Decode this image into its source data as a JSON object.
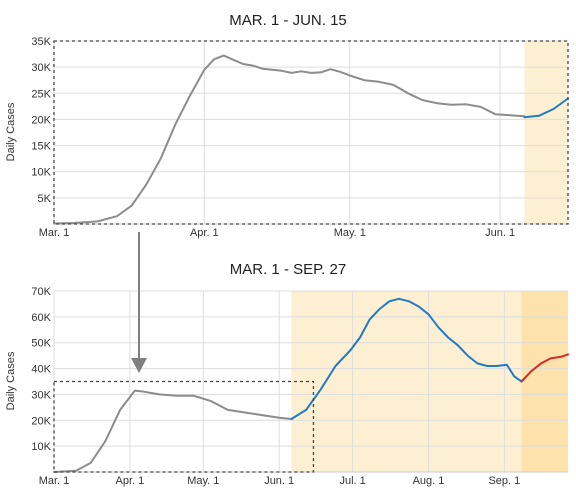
{
  "chart_data": [
    {
      "type": "line",
      "title": "MAR. 1 - JUN. 15",
      "ylabel": "Daily Cases",
      "ylim": [
        0,
        35000
      ],
      "yticks": [
        5000,
        10000,
        15000,
        20000,
        25000,
        30000,
        35000
      ],
      "ytick_labels": [
        "5K",
        "10K",
        "15K",
        "20K",
        "25K",
        "30K",
        "35K"
      ],
      "xlim": [
        "2020-03-01",
        "2020-06-15"
      ],
      "xticks": [
        "2020-03-01",
        "2020-04-01",
        "2020-05-01",
        "2020-06-01"
      ],
      "xtick_labels": [
        "Mar. 1",
        "Apr. 1",
        "May. 1",
        "Jun. 1"
      ],
      "grid": true,
      "highlight_band": {
        "from": "2020-06-06",
        "to": "2020-06-15",
        "color": "#fdf0d2"
      },
      "series": [
        {
          "color": "#8c8c8c",
          "x": [
            "2020-03-01",
            "2020-03-05",
            "2020-03-10",
            "2020-03-14",
            "2020-03-17",
            "2020-03-20",
            "2020-03-23",
            "2020-03-26",
            "2020-03-29",
            "2020-04-01",
            "2020-04-03",
            "2020-04-05",
            "2020-04-07",
            "2020-04-09",
            "2020-04-11",
            "2020-04-13",
            "2020-04-15",
            "2020-04-17",
            "2020-04-19",
            "2020-04-21",
            "2020-04-23",
            "2020-04-25",
            "2020-04-27",
            "2020-04-29",
            "2020-05-01",
            "2020-05-04",
            "2020-05-07",
            "2020-05-10",
            "2020-05-13",
            "2020-05-16",
            "2020-05-19",
            "2020-05-22",
            "2020-05-25",
            "2020-05-28",
            "2020-05-31",
            "2020-06-03",
            "2020-06-06"
          ],
          "y": [
            100,
            200,
            500,
            1500,
            3500,
            7500,
            12500,
            19000,
            24500,
            29500,
            31500,
            32200,
            31400,
            30600,
            30300,
            29700,
            29500,
            29300,
            28900,
            29200,
            28900,
            29000,
            29600,
            29100,
            28400,
            27500,
            27200,
            26600,
            25000,
            23700,
            23100,
            22800,
            22900,
            22400,
            21000,
            20800,
            20600
          ]
        },
        {
          "color": "#1f7bc4",
          "x": [
            "2020-06-06",
            "2020-06-09",
            "2020-06-12",
            "2020-06-15"
          ],
          "y": [
            20400,
            20700,
            22000,
            24000
          ]
        }
      ]
    },
    {
      "type": "line",
      "title": "MAR. 1 - SEP. 27",
      "ylabel": "Daily Cases",
      "ylim": [
        0,
        70000
      ],
      "yticks": [
        10000,
        20000,
        30000,
        40000,
        50000,
        60000,
        70000
      ],
      "ytick_labels": [
        "10K",
        "20K",
        "30K",
        "40K",
        "50K",
        "60K",
        "70K"
      ],
      "xlim": [
        "2020-03-01",
        "2020-09-27"
      ],
      "xticks": [
        "2020-03-01",
        "2020-04-01",
        "2020-05-01",
        "2020-06-01",
        "2020-07-01",
        "2020-08-01",
        "2020-09-01"
      ],
      "xtick_labels": [
        "Mar. 1",
        "Apr. 1",
        "May. 1",
        "Jun. 1",
        "Jul. 1",
        "Aug. 1",
        "Sep. 1"
      ],
      "grid": true,
      "highlight_bands": [
        {
          "from": "2020-06-06",
          "to": "2020-09-08",
          "color": "#fdf0d2"
        },
        {
          "from": "2020-09-08",
          "to": "2020-09-27",
          "color": "#fde3ab"
        }
      ],
      "inset_box": {
        "from": "2020-03-01",
        "to": "2020-06-15",
        "ymax": 35000
      },
      "series": [
        {
          "color": "#8c8c8c",
          "x": [
            "2020-03-01",
            "2020-03-10",
            "2020-03-16",
            "2020-03-22",
            "2020-03-28",
            "2020-04-03",
            "2020-04-07",
            "2020-04-13",
            "2020-04-20",
            "2020-04-27",
            "2020-05-04",
            "2020-05-11",
            "2020-05-18",
            "2020-05-25",
            "2020-06-01",
            "2020-06-06"
          ],
          "y": [
            0,
            500,
            3500,
            12000,
            24000,
            31500,
            31000,
            30000,
            29500,
            29500,
            27500,
            24000,
            23000,
            22000,
            21000,
            20500
          ]
        },
        {
          "color": "#1f7bc4",
          "x": [
            "2020-06-06",
            "2020-06-12",
            "2020-06-18",
            "2020-06-24",
            "2020-06-30",
            "2020-07-04",
            "2020-07-08",
            "2020-07-12",
            "2020-07-16",
            "2020-07-20",
            "2020-07-24",
            "2020-07-28",
            "2020-08-01",
            "2020-08-05",
            "2020-08-09",
            "2020-08-13",
            "2020-08-17",
            "2020-08-21",
            "2020-08-25",
            "2020-08-29",
            "2020-09-02",
            "2020-09-05",
            "2020-09-08"
          ],
          "y": [
            20500,
            24000,
            32000,
            41000,
            47000,
            52000,
            59000,
            63000,
            66000,
            67000,
            66000,
            64000,
            61000,
            56000,
            52000,
            49000,
            45000,
            42000,
            41000,
            41000,
            41500,
            37000,
            35000
          ]
        },
        {
          "color": "#d42a2a",
          "x": [
            "2020-09-08",
            "2020-09-12",
            "2020-09-16",
            "2020-09-20",
            "2020-09-24",
            "2020-09-27"
          ],
          "y": [
            35000,
            39000,
            42000,
            44000,
            44500,
            45500
          ]
        }
      ]
    }
  ]
}
